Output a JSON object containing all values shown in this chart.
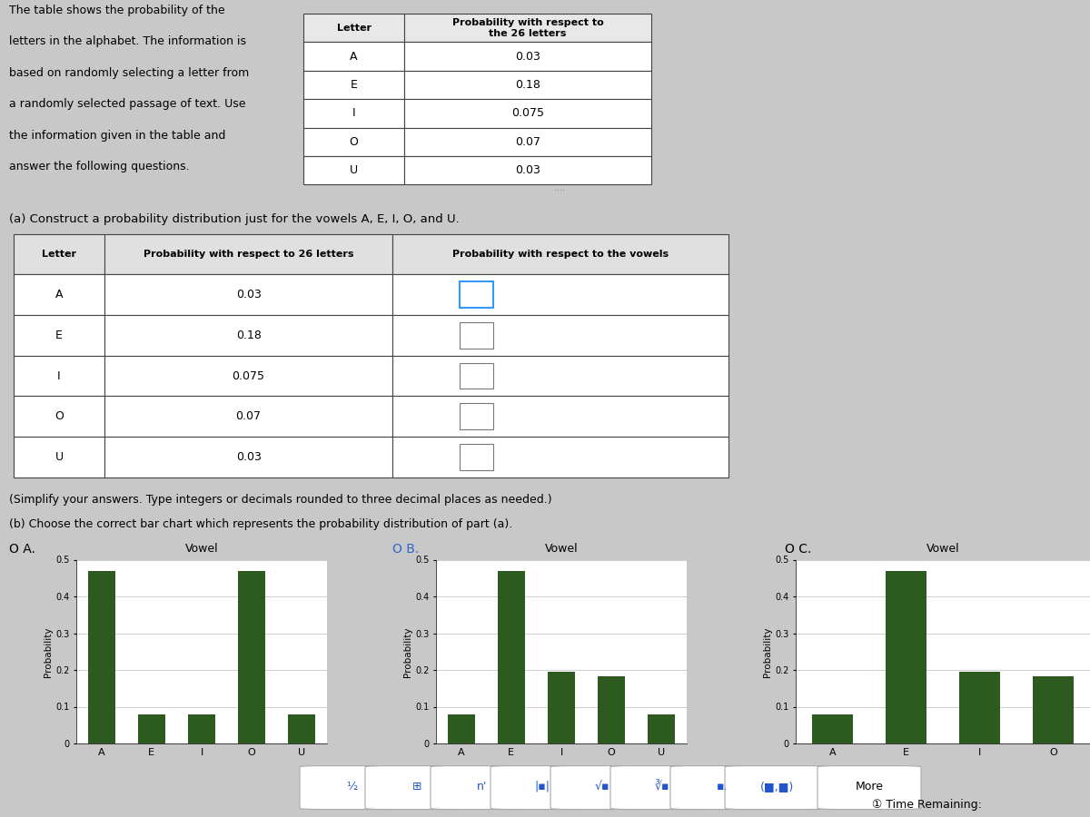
{
  "letters": [
    "A",
    "E",
    "I",
    "O",
    "U"
  ],
  "prob_26": [
    "0.03",
    "0.18",
    "0.075",
    "0.07",
    "0.03"
  ],
  "chart_A_values": [
    0.468,
    0.078,
    0.078,
    0.468,
    0.078
  ],
  "chart_B_values": [
    0.078,
    0.468,
    0.195,
    0.182,
    0.078
  ],
  "chart_C_values": [
    0.078,
    0.468,
    0.195,
    0.182
  ],
  "bar_color": "#2d5a1e",
  "bg_top": "#b8b8b8",
  "bg_main": "#c8c8c8",
  "bg_white": "#f5f5f5",
  "title_text_lines": [
    "The table shows the probability of the",
    "letters in the alphabet. The information is",
    "based on randomly selecting a letter from",
    "a randomly selected passage of text. Use",
    "the information given in the table and",
    "answer the following questions."
  ],
  "part_a_text": "(a) Construct a probability distribution just for the vowels A, E, I, O, and U.",
  "part_b_text": "(b) Choose the correct bar chart which represents the probability distribution of part (a).",
  "simplify_text": "(Simplify your answers. Type integers or decimals rounded to three decimal places as needed.)",
  "ylabel": "Probability",
  "xlabel_vowel": "Vowel",
  "yticks": [
    0,
    0.1,
    0.2,
    0.3,
    0.4,
    0.5
  ],
  "radio_labels": [
    "O A.",
    "O B.",
    "O C."
  ],
  "toolbar_label": "More",
  "time_text": "① Time Remaining:"
}
